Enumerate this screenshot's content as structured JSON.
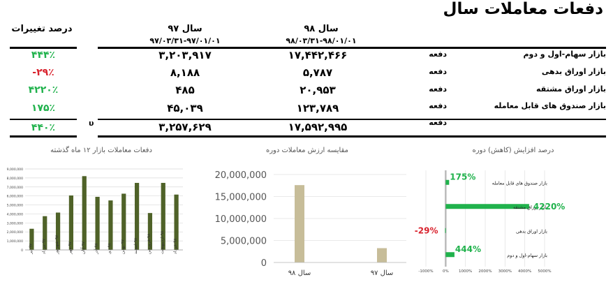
{
  "title": "دفعات معاملات سال",
  "columns": {
    "year98": "سال ۹۸",
    "year98_range": "۹۸/۰۳/۳۱-۹۸/۰۱/۰۱",
    "year97": "سال ۹۷",
    "year97_range": "۹۷/۰۳/۳۱-۹۷/۰۱/۰۱",
    "change": "درصد تغییرات"
  },
  "rows": [
    {
      "name": "بازار سهام-اول و دوم",
      "unit": "دفعه",
      "y98": "۱۷,۴۴۲,۴۶۶",
      "y97": "۳,۲۰۳,۹۱۷",
      "change": "۴۴۴٪",
      "color": "#20b24c"
    },
    {
      "name": "بازار اوراق بدهی",
      "unit": "دفعه",
      "y98": "۵,۷۸۷",
      "y97": "۸,۱۸۸",
      "change": "-۲۹٪",
      "color": "#d9232e"
    },
    {
      "name": "بازار اوراق مشتقه",
      "unit": "دفعه",
      "y98": "۲۰,۹۵۳",
      "y97": "۴۸۵",
      "change": "۴۲۲۰٪",
      "color": "#20b24c"
    },
    {
      "name": "بازار صندوق های قابل معامله",
      "unit": "دفعه",
      "y98": "۱۲۳,۷۸۹",
      "y97": "۴۵,۰۳۹",
      "change": "۱۷۵٪",
      "color": "#20b24c"
    }
  ],
  "total": {
    "unit": "دفعه",
    "y98": "۱۷,۵۹۲,۹۹۵",
    "y97": "۳,۲۵۷,۶۲۹",
    "change": "۴۴۰٪",
    "color": "#20b24c",
    "marker": "υ"
  },
  "chart_data": [
    {
      "type": "bar",
      "title": "دفعات معاملات بازار ۱۲ ماه گذشته",
      "categories": [
        "۹۷-تیر",
        "۹۷-مرداد",
        "۹۷-شهریور",
        "۹۷-مهر",
        "۹۷-آبان",
        "۹۷-آذر",
        "۹۷-دی",
        "۹۷-بهمن",
        "۹۷-اسفند",
        "۹۸-فروردین",
        "۹۸-اردیبهشت",
        "۹۸-خرداد"
      ],
      "values": [
        2350000,
        3750000,
        4150000,
        6050000,
        8200000,
        5900000,
        5500000,
        6250000,
        7450000,
        4100000,
        7450000,
        6150000
      ],
      "ylim": [
        0,
        9000000
      ],
      "yticks": [
        "0",
        "1,000,000",
        "2,000,000",
        "3,000,000",
        "4,000,000",
        "5,000,000",
        "6,000,000",
        "7,000,000",
        "8,000,000",
        "9,000,000"
      ],
      "bar_color": "#4f6228",
      "grid": true
    },
    {
      "type": "bar",
      "title": "مقایسه ارزش معاملات دوره",
      "categories": [
        "سال ۹۸",
        "سال ۹۷"
      ],
      "values": [
        17592995,
        3257629
      ],
      "ylim": [
        0,
        20000000
      ],
      "yticks": [
        "0",
        "5,000,000",
        "10,000,000",
        "15,000,000",
        "20,000,000"
      ],
      "bar_color": "#c7bd99",
      "grid": true
    },
    {
      "type": "bar",
      "orientation": "horizontal",
      "title": "درصد افزایش (کاهش) دوره",
      "categories": [
        "بازار صندوق های قابل معامله",
        "بازار اوراق مشتقه",
        "بازار اوراق بدهی",
        "بازار سهام-اول و دوم"
      ],
      "values": [
        175,
        4220,
        -29,
        444
      ],
      "data_labels": [
        "175%",
        "4220%",
        "-29%",
        "444%"
      ],
      "xlim": [
        -1000,
        5000
      ],
      "xticks": [
        "-1000%",
        "0%",
        "1000%",
        "2000%",
        "3000%",
        "4000%",
        "5000%"
      ],
      "bar_color": "#20b24c",
      "label_colors": [
        "#20b24c",
        "#20b24c",
        "#d9232e",
        "#20b24c"
      ],
      "grid": true
    }
  ]
}
